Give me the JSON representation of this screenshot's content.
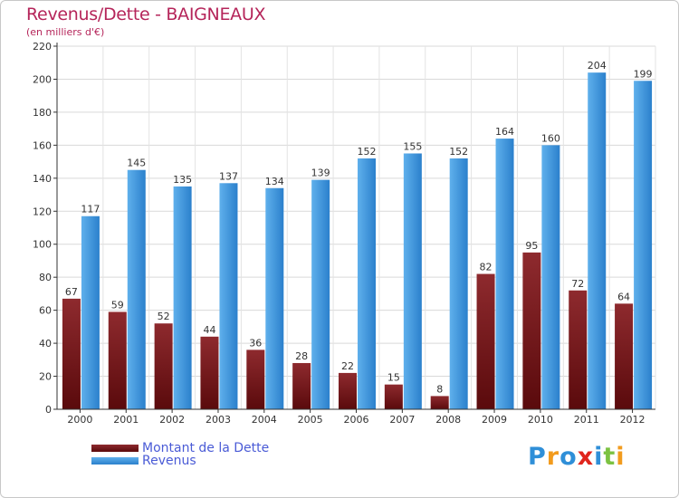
{
  "chart_data": {
    "type": "bar",
    "title": "Revenus/Dette - BAIGNEAUX",
    "subtitle": "(en milliers d'€)",
    "categories": [
      "2000",
      "2001",
      "2002",
      "2003",
      "2004",
      "2005",
      "2006",
      "2007",
      "2008",
      "2009",
      "2010",
      "2011",
      "2012"
    ],
    "series": [
      {
        "name": "Montant de la Dette",
        "values": [
          67,
          59,
          52,
          44,
          36,
          28,
          22,
          15,
          8,
          82,
          95,
          72,
          64
        ],
        "color": "#7a1a1c"
      },
      {
        "name": "Revenus",
        "values": [
          117,
          145,
          135,
          137,
          134,
          139,
          152,
          155,
          152,
          164,
          160,
          204,
          199
        ],
        "color": "#3a95db"
      }
    ],
    "ylim": [
      0,
      220
    ],
    "yticks": [
      0,
      20,
      40,
      60,
      80,
      100,
      120,
      140,
      160,
      180,
      200,
      220
    ],
    "grid": true,
    "legend_position": "bottom-left"
  },
  "logo": {
    "letters": [
      {
        "ch": "P",
        "color": "#2f8fd8"
      },
      {
        "ch": "r",
        "color": "#f29b1d"
      },
      {
        "ch": "o",
        "color": "#2f8fd8"
      },
      {
        "ch": "x",
        "color": "#e0251d"
      },
      {
        "ch": "i",
        "color": "#2f8fd8"
      },
      {
        "ch": "t",
        "color": "#7cc242"
      },
      {
        "ch": "i",
        "color": "#f29b1d"
      }
    ]
  }
}
